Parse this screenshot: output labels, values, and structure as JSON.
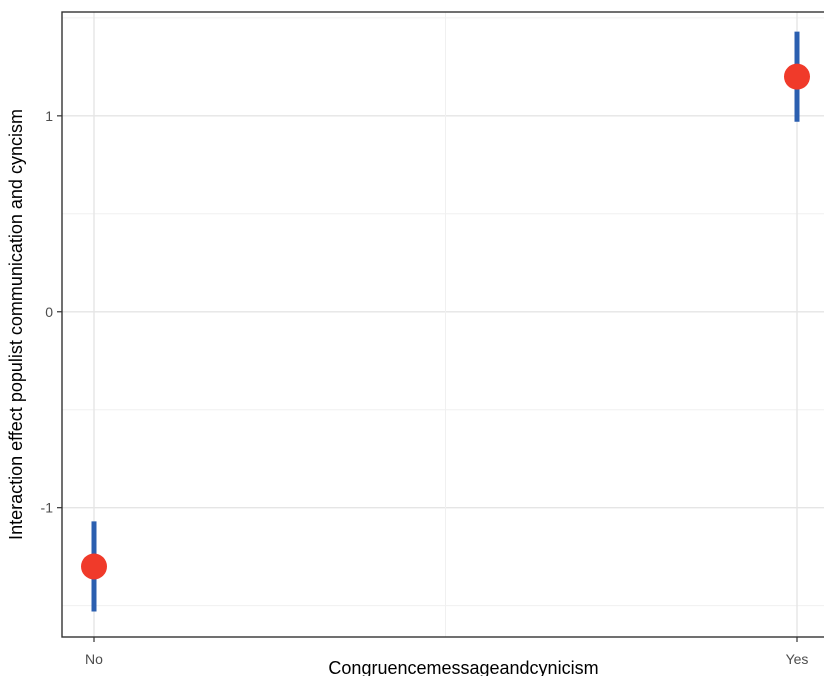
{
  "chart_data": {
    "type": "scatter",
    "categories": [
      "No",
      "Yes"
    ],
    "series": [
      {
        "points": [
          {
            "x": "No",
            "y": -1.3,
            "ymin": -1.53,
            "ymax": -1.07
          },
          {
            "x": "Yes",
            "y": 1.2,
            "ymin": 0.97,
            "ymax": 1.43
          }
        ]
      }
    ],
    "xlabel": "Congruencemessageandcynicism",
    "ylabel": "Interaction effect populist communication and cyncism",
    "ylim": [
      -1.66,
      1.53
    ],
    "yticks": [
      -1,
      0,
      1
    ],
    "ytick_labels": [
      "-1",
      "0",
      "1"
    ],
    "grid": true,
    "colors": {
      "point": "#f03a2a",
      "errorbar": "#2b5fb0",
      "panel_border": "#333333",
      "grid": "#e5e5e5"
    }
  }
}
